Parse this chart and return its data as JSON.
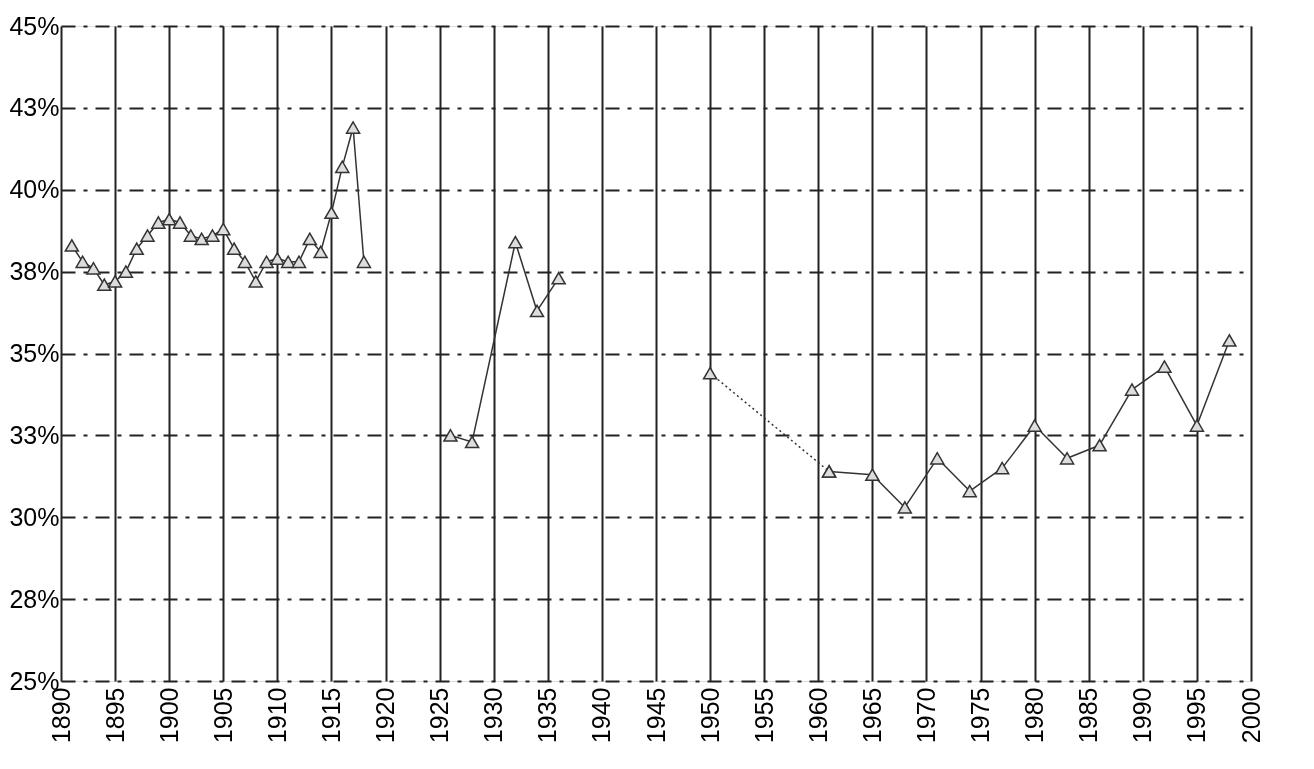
{
  "chart_data": {
    "type": "line",
    "xlim": [
      1890,
      2000
    ],
    "xticks": [
      1890,
      1895,
      1900,
      1905,
      1910,
      1915,
      1920,
      1925,
      1930,
      1935,
      1940,
      1945,
      1950,
      1955,
      1960,
      1965,
      1970,
      1975,
      1980,
      1985,
      1990,
      1995,
      2000
    ],
    "ylim": [
      25,
      45
    ],
    "yticks": [
      {
        "value": 25,
        "label": "25%"
      },
      {
        "value": 27.5,
        "label": "28%"
      },
      {
        "value": 30,
        "label": "30%"
      },
      {
        "value": 32.5,
        "label": "33%"
      },
      {
        "value": 35,
        "label": "35%"
      },
      {
        "value": 37.5,
        "label": "38%"
      },
      {
        "value": 40,
        "label": "40%"
      },
      {
        "value": 42.5,
        "label": "43%"
      },
      {
        "value": 45,
        "label": "45%"
      }
    ],
    "grid": true,
    "marker": "triangle",
    "series": [
      {
        "color": "#333333",
        "line_style": "solid",
        "x": [
          1891,
          1892,
          1893,
          1894,
          1895,
          1896,
          1897,
          1898,
          1899,
          1900,
          1901,
          1902,
          1903,
          1904,
          1905,
          1906,
          1907,
          1908,
          1909,
          1910,
          1911,
          1912,
          1913,
          1914,
          1915,
          1916,
          1917,
          1918
        ],
        "values": [
          38.3,
          37.8,
          37.6,
          37.1,
          37.2,
          37.5,
          38.2,
          38.6,
          39.0,
          39.1,
          39.0,
          38.6,
          38.5,
          38.6,
          38.8,
          38.2,
          37.8,
          37.2,
          37.8,
          37.9,
          37.8,
          37.8,
          38.5,
          38.1,
          39.3,
          40.7,
          41.9,
          37.8
        ]
      },
      {
        "color": "#333333",
        "line_style": "solid",
        "x": [
          1926,
          1928,
          1932,
          1934,
          1936
        ],
        "values": [
          32.5,
          32.3,
          38.4,
          36.3,
          37.3
        ]
      },
      {
        "color": "#333333",
        "line_style": "dotted",
        "x": [
          1950,
          1961
        ],
        "values": [
          34.4,
          31.4
        ]
      },
      {
        "color": "#333333",
        "line_style": "solid",
        "x": [
          1961,
          1965,
          1968,
          1971,
          1974,
          1977,
          1980,
          1983,
          1986,
          1989,
          1992,
          1995,
          1998
        ],
        "values": [
          31.4,
          31.3,
          30.3,
          31.8,
          30.8,
          31.5,
          32.8,
          31.8,
          32.2,
          33.9,
          34.6,
          32.8,
          35.4
        ]
      }
    ]
  }
}
